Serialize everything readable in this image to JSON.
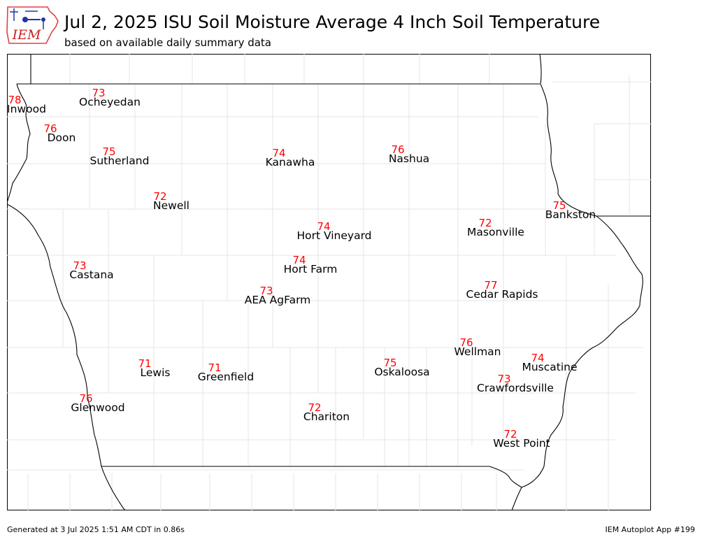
{
  "header": {
    "logo_text": "IEM",
    "title": "Jul 2, 2025 ISU Soil Moisture Average 4 Inch Soil Temperature",
    "subtitle": "based on available daily summary data"
  },
  "footer": {
    "generated": "Generated at 3 Jul 2025 1:51 AM CDT in 0.86s",
    "app": "IEM Autoplot App #199"
  },
  "colors": {
    "value_text": "#ff0000",
    "station_text": "#000000",
    "state_border": "#000000",
    "county_lines": "#e6e6e6"
  },
  "stations": [
    {
      "name": "Inwood",
      "value": 78
    },
    {
      "name": "Ocheyedan",
      "value": 73
    },
    {
      "name": "Doon",
      "value": 76
    },
    {
      "name": "Sutherland",
      "value": 75
    },
    {
      "name": "Kanawha",
      "value": 74
    },
    {
      "name": "Nashua",
      "value": 76
    },
    {
      "name": "Newell",
      "value": 72
    },
    {
      "name": "Bankston",
      "value": 75
    },
    {
      "name": "Masonville",
      "value": 72
    },
    {
      "name": "Hort Vineyard",
      "value": 74
    },
    {
      "name": "Castana",
      "value": 73
    },
    {
      "name": "Hort Farm",
      "value": 74
    },
    {
      "name": "AEA AgFarm",
      "value": 73
    },
    {
      "name": "Cedar Rapids",
      "value": 77
    },
    {
      "name": "Wellman",
      "value": 76
    },
    {
      "name": "Lewis",
      "value": 71
    },
    {
      "name": "Greenfield",
      "value": 71
    },
    {
      "name": "Oskaloosa",
      "value": 75
    },
    {
      "name": "Muscatine",
      "value": 74
    },
    {
      "name": "Crawfordsville",
      "value": 73
    },
    {
      "name": "Glenwood",
      "value": 76
    },
    {
      "name": "Chariton",
      "value": 72
    },
    {
      "name": "West Point",
      "value": 72
    }
  ]
}
